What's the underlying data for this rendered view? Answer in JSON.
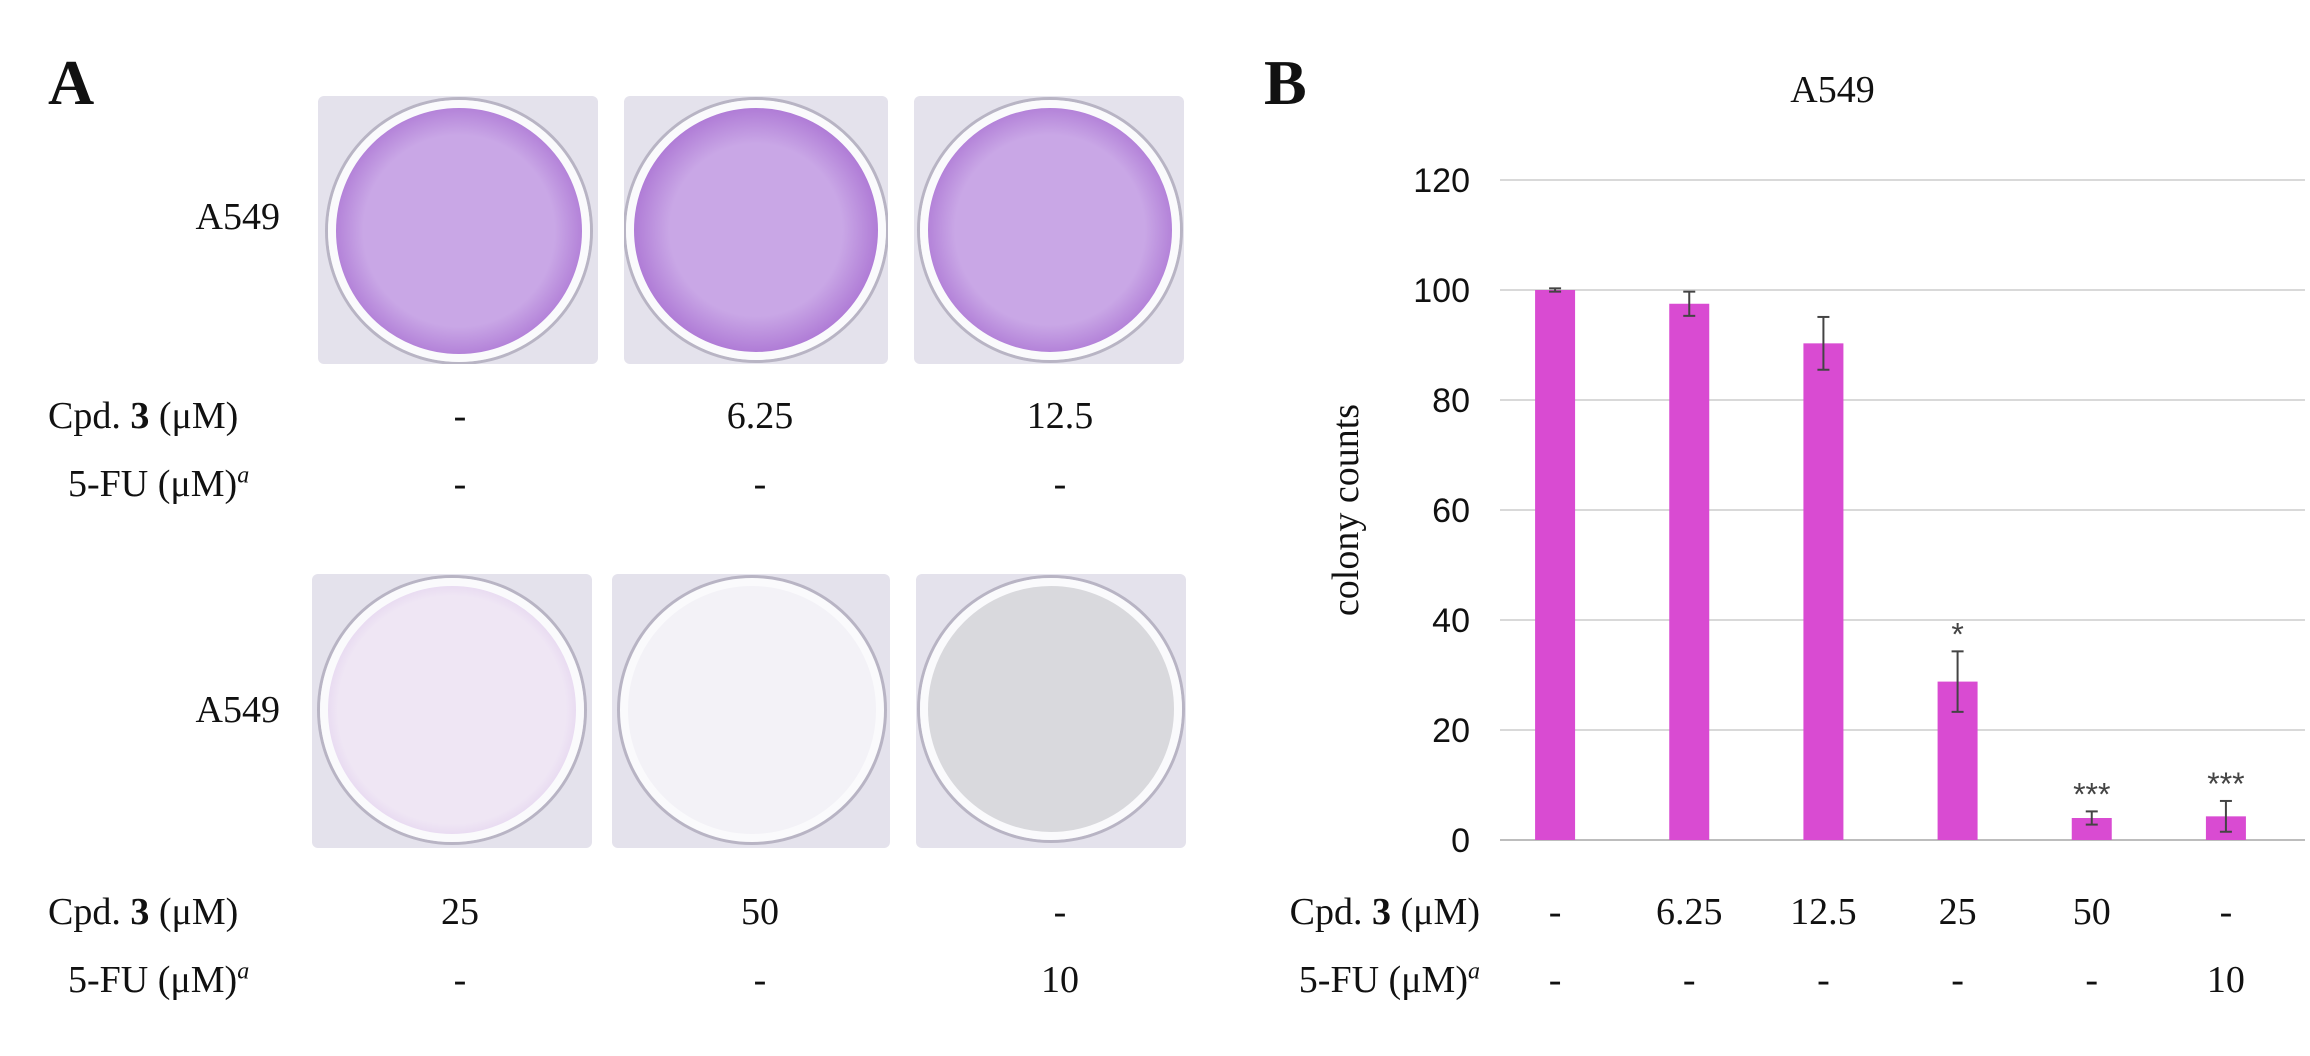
{
  "panel_a": {
    "letter": "A",
    "row_labels": [
      "A549",
      "A549"
    ],
    "cpd_label_prefix": "Cpd. ",
    "cpd_label_bold": "3",
    "cpd_label_suffix": " (μM)",
    "fu_label": "5-FU (μM)",
    "fu_sup": "a",
    "top_cpd": [
      "-",
      "6.25",
      "12.5"
    ],
    "top_fu": [
      "-",
      "-",
      "-"
    ],
    "bottom_cpd": [
      "25",
      "50",
      "-"
    ],
    "bottom_fu": [
      "-",
      "-",
      "10"
    ],
    "well_colors": {
      "dense": "#8c3fc0",
      "dense_light": "#c9a7e6",
      "sparse": "#efe6f4",
      "empty": "#f3f2f7",
      "grey": "#d9d9dd"
    }
  },
  "panel_b": {
    "letter": "B",
    "cpd_row": [
      "-",
      "6.25",
      "12.5",
      "25",
      "50",
      "-"
    ],
    "fu_row": [
      "-",
      "-",
      "-",
      "-",
      "-",
      "10"
    ]
  },
  "chart_data": {
    "type": "bar",
    "title": "A549",
    "ylabel": "colony counts",
    "xlabel": "",
    "ylim": [
      0,
      120
    ],
    "yticks": [
      0,
      20,
      40,
      60,
      80,
      100,
      120
    ],
    "grid": true,
    "bar_color": "#d94bd2",
    "categories": [
      "1",
      "2",
      "3",
      "4",
      "5",
      "6"
    ],
    "values": [
      100,
      97.5,
      90.3,
      28.8,
      4.0,
      4.3
    ],
    "errors": [
      0.3,
      2.2,
      4.8,
      5.5,
      1.2,
      2.8
    ],
    "significance": [
      "",
      "",
      "",
      "*",
      "***",
      "***"
    ]
  }
}
